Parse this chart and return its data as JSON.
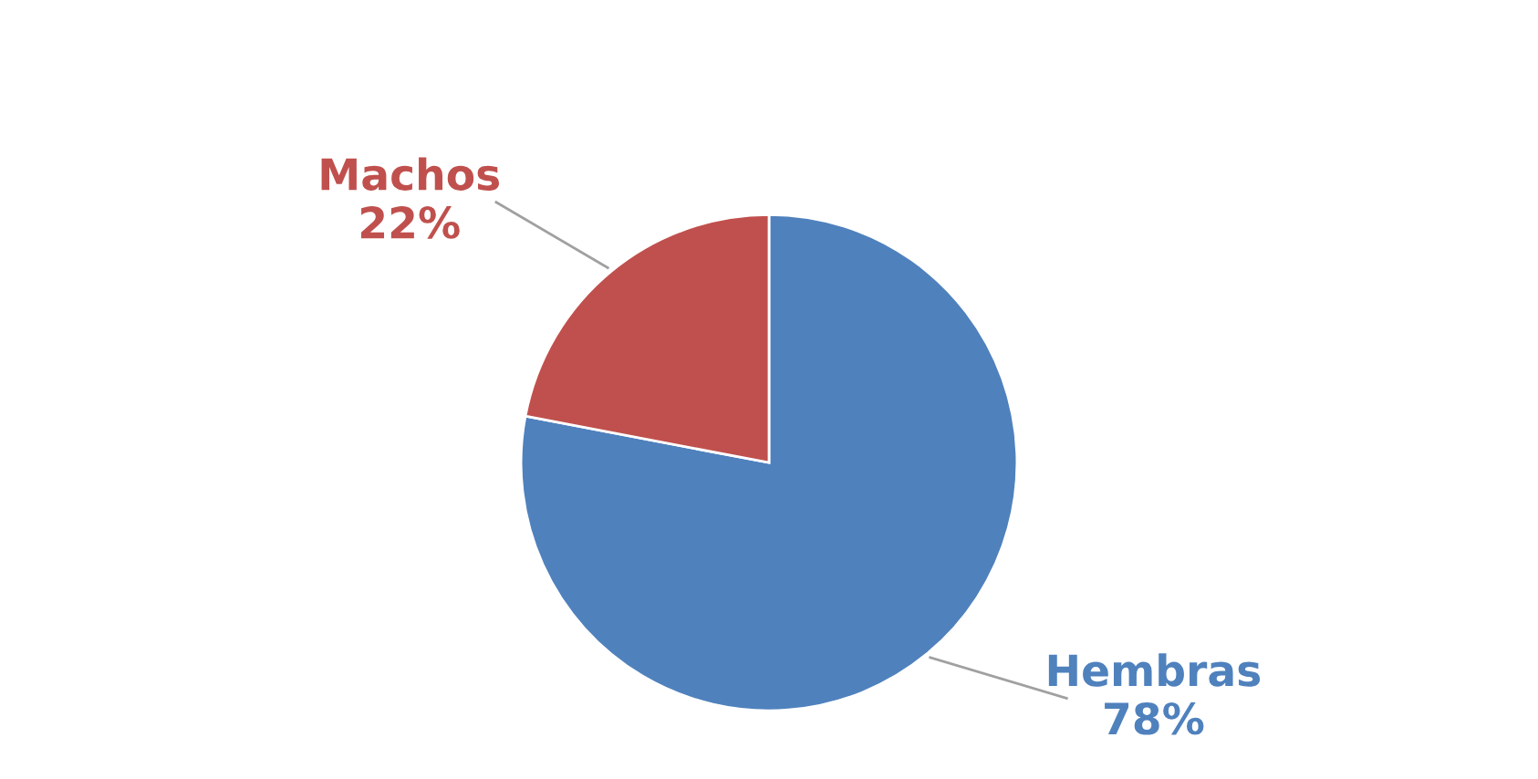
{
  "chart_data": {
    "type": "pie",
    "categories": [
      "Hembras",
      "Machos"
    ],
    "values": [
      78,
      22
    ],
    "colors": [
      "#4f81bd",
      "#c0504d"
    ],
    "value_labels": [
      "78%",
      "22%"
    ],
    "legend": false
  }
}
